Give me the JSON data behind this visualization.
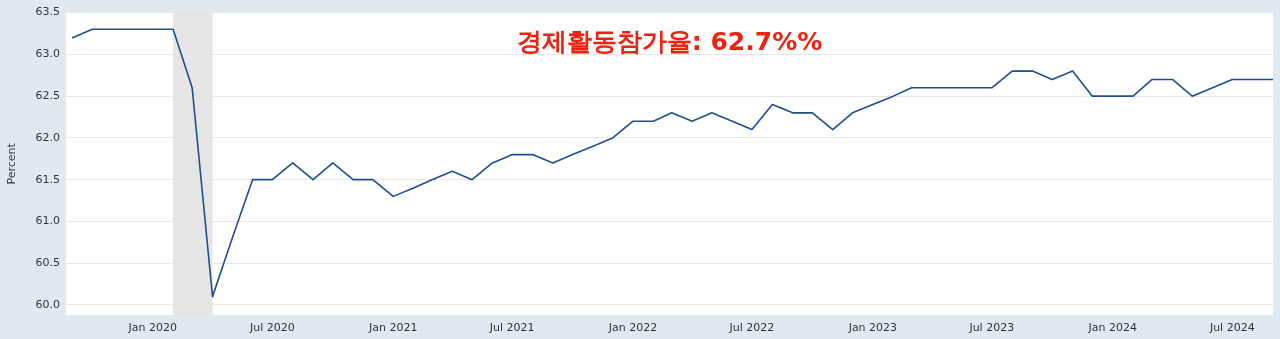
{
  "chart_data": {
    "type": "line",
    "ylabel": "Percent",
    "annotations": [
      "경제활동참가율: 62.7%%"
    ],
    "x": [
      "2019-09",
      "2019-10",
      "2019-11",
      "2019-12",
      "2020-01",
      "2020-02",
      "2020-03",
      "2020-04",
      "2020-05",
      "2020-06",
      "2020-07",
      "2020-08",
      "2020-09",
      "2020-10",
      "2020-11",
      "2020-12",
      "2021-01",
      "2021-02",
      "2021-03",
      "2021-04",
      "2021-05",
      "2021-06",
      "2021-07",
      "2021-08",
      "2021-09",
      "2021-10",
      "2021-11",
      "2021-12",
      "2022-01",
      "2022-02",
      "2022-03",
      "2022-04",
      "2022-05",
      "2022-06",
      "2022-07",
      "2022-08",
      "2022-09",
      "2022-10",
      "2022-11",
      "2022-12",
      "2023-01",
      "2023-02",
      "2023-03",
      "2023-04",
      "2023-05",
      "2023-06",
      "2023-07",
      "2023-08",
      "2023-09",
      "2023-10",
      "2023-11",
      "2023-12",
      "2024-01",
      "2024-02",
      "2024-03",
      "2024-04",
      "2024-05",
      "2024-06",
      "2024-07",
      "2024-08",
      "2024-09"
    ],
    "series": [
      {
        "color": "#1f4e8f",
        "values": [
          63.2,
          63.3,
          63.3,
          63.3,
          63.3,
          63.3,
          62.6,
          60.1,
          60.8,
          61.5,
          61.5,
          61.7,
          61.5,
          61.7,
          61.5,
          61.5,
          61.3,
          61.4,
          61.5,
          61.6,
          61.5,
          61.7,
          61.8,
          61.8,
          61.7,
          61.8,
          61.9,
          62.0,
          62.2,
          62.2,
          62.3,
          62.2,
          62.3,
          62.2,
          62.1,
          62.4,
          62.3,
          62.3,
          62.1,
          62.3,
          62.4,
          62.5,
          62.6,
          62.6,
          62.6,
          62.6,
          62.6,
          62.8,
          62.8,
          62.7,
          62.8,
          62.5,
          62.5,
          62.5,
          62.7,
          62.7,
          62.5,
          62.6,
          62.7,
          62.7,
          62.7
        ]
      }
    ],
    "xlim": [
      "2019-08-22",
      "2024-09-01"
    ],
    "xticks": [
      {
        "value": "2020-01",
        "label": "Jan 2020"
      },
      {
        "value": "2020-07",
        "label": "Jul 2020"
      },
      {
        "value": "2021-01",
        "label": "Jan 2021"
      },
      {
        "value": "2021-07",
        "label": "Jul 2021"
      },
      {
        "value": "2022-01",
        "label": "Jan 2022"
      },
      {
        "value": "2022-07",
        "label": "Jul 2022"
      },
      {
        "value": "2023-01",
        "label": "Jan 2023"
      },
      {
        "value": "2023-07",
        "label": "Jul 2023"
      },
      {
        "value": "2024-01",
        "label": "Jan 2024"
      },
      {
        "value": "2024-07",
        "label": "Jul 2024"
      }
    ],
    "ylim": [
      59.88,
      63.5
    ],
    "yticks": [
      {
        "value": 60,
        "label": "60.0"
      },
      {
        "value": 60.5,
        "label": "60.5"
      },
      {
        "value": 61,
        "label": "61.0"
      },
      {
        "value": 61.5,
        "label": "61.5"
      },
      {
        "value": 62,
        "label": "62.0"
      },
      {
        "value": 62.5,
        "label": "62.5"
      },
      {
        "value": 63,
        "label": "63.0"
      },
      {
        "value": 63.5,
        "label": "63.5"
      }
    ],
    "bands": [
      {
        "axis": "x",
        "from": "2020-02",
        "to": "2020-04",
        "color": "#e5e5e5"
      }
    ],
    "grid": "y",
    "legend": false,
    "marker": "none",
    "line_style": "solid"
  }
}
